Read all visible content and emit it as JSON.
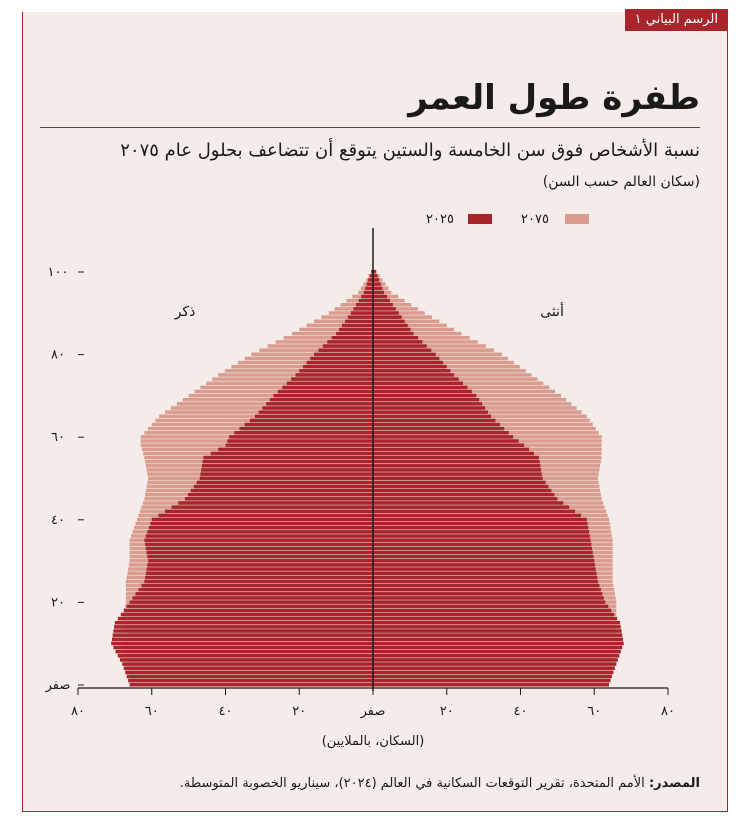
{
  "header": {
    "badge": "الرسم البياني ١",
    "title": "طفرة طول العمر",
    "subtitle": "نسبة الأشخاص فوق سن الخامسة والستين يتوقع أن تتضاعف بحلول عام ٢٠٧٥",
    "subtitle2": "(سكان العالم حسب السن)"
  },
  "source": {
    "label": "المصدر:",
    "text": " الأمم المتحدة، تقرير التوقعات السكانية في العالم (٢٠٢٤)، سيناريو الخصوبة المتوسطة."
  },
  "colors": {
    "y2025": "#a8262b",
    "y2075": "#d99c8f",
    "axis": "#1a1a1a"
  },
  "chart_data": {
    "type": "bar",
    "orientation": "horizontal-population-pyramid",
    "title": "طفرة طول العمر",
    "subtitle": "نسبة الأشخاص فوق سن الخامسة والستين يتوقع أن تتضاعف بحلول عام ٢٠٧٥",
    "xlabel": "(السكان، بالملايين)",
    "xlim": [
      0,
      80
    ],
    "ylim": [
      0,
      100
    ],
    "x_ticks": [
      80,
      60,
      40,
      20,
      0,
      20,
      40,
      60,
      80
    ],
    "x_tick_labels": [
      "٨٠",
      "٦٠",
      "٤٠",
      "٢٠",
      "صفر",
      "٢٠",
      "٤٠",
      "٦٠",
      "٨٠"
    ],
    "y_ticks": [
      0,
      20,
      40,
      60,
      80,
      100
    ],
    "y_tick_labels": [
      "صفر",
      "٢٠",
      "٤٠",
      "٦٠",
      "٨٠",
      "١٠٠"
    ],
    "side_labels": {
      "male": "ذكر",
      "female": "أنثى"
    },
    "legend": [
      {
        "name": "٢٠٢٥",
        "key": "y2025"
      },
      {
        "name": "٢٠٧٥",
        "key": "y2075"
      }
    ],
    "legend_position": "top",
    "series_values_at_ages": {
      "ages": [
        0,
        5,
        10,
        15,
        20,
        25,
        30,
        35,
        40,
        45,
        50,
        55,
        58,
        60,
        65,
        70,
        75,
        80,
        85,
        90,
        95,
        100
      ],
      "male_2025": [
        66,
        68,
        71,
        70,
        66,
        62,
        61,
        62,
        60,
        51,
        47,
        46,
        40,
        39,
        32,
        27,
        21,
        16,
        10,
        6,
        2.5,
        0.5
      ],
      "female_2025": [
        64,
        66,
        68,
        67,
        63,
        61,
        60,
        59,
        58,
        50,
        46,
        45,
        41,
        38,
        32,
        28,
        22,
        17,
        11,
        7,
        3,
        0.8
      ],
      "male_2075": [
        66,
        67,
        68,
        68,
        67,
        67,
        66,
        66,
        64,
        62,
        61,
        62,
        63,
        63,
        58,
        50,
        42,
        33,
        22,
        12,
        4,
        0.5
      ],
      "female_2075": [
        64,
        65,
        66,
        66,
        66,
        65,
        65,
        65,
        64,
        62,
        61,
        62,
        62,
        62,
        58,
        51,
        43,
        35,
        24,
        14,
        5,
        1
      ]
    }
  }
}
